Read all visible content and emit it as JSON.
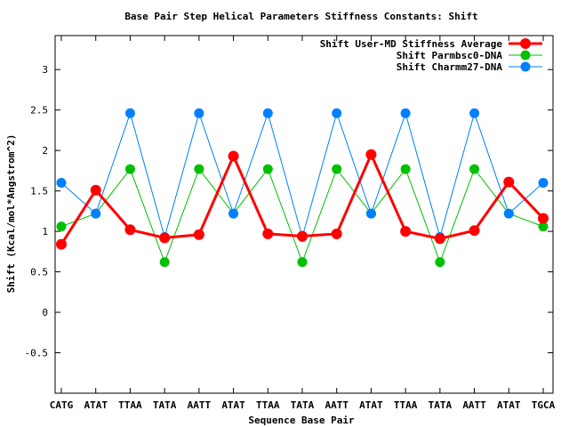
{
  "chart_data": {
    "type": "line",
    "title": "Base Pair Step Helical Parameters Stiffness Constants: Shift",
    "xlabel": "Sequence Base Pair",
    "ylabel": "Shift (Kcal/mol*Angstrom^2)",
    "categories": [
      "CATG",
      "ATAT",
      "TTAA",
      "TATA",
      "AATT",
      "ATAT",
      "TTAA",
      "TATA",
      "AATT",
      "ATAT",
      "TTAA",
      "TATA",
      "AATT",
      "ATAT",
      "TGCA"
    ],
    "ylim": [
      -1,
      3.42
    ],
    "yticks": [
      -0.5,
      0,
      0.5,
      1,
      1.5,
      2,
      2.5,
      3
    ],
    "ytick_labels": [
      "-0.5",
      "0",
      "0.5",
      "1",
      "1.5",
      "2",
      "2.5",
      "3"
    ],
    "legend_position": "top-right",
    "series": [
      {
        "name": "Shift User-MD Stiffness Average",
        "color": "#ff0000",
        "values": [
          0.84,
          1.51,
          1.02,
          0.92,
          0.96,
          1.93,
          0.97,
          0.94,
          0.97,
          1.95,
          1.0,
          0.91,
          1.01,
          1.61,
          1.16
        ]
      },
      {
        "name": "Shift Parmbsc0-DNA",
        "color": "#00c000",
        "values": [
          1.06,
          1.22,
          1.77,
          0.62,
          1.77,
          1.22,
          1.77,
          0.62,
          1.77,
          1.22,
          1.77,
          0.62,
          1.77,
          1.22,
          1.06
        ]
      },
      {
        "name": "Shift Charmm27-DNA",
        "color": "#0080ff",
        "values": [
          1.6,
          1.22,
          2.46,
          0.93,
          2.46,
          1.22,
          2.46,
          0.93,
          2.46,
          1.22,
          2.46,
          0.93,
          2.46,
          1.22,
          1.6
        ]
      }
    ]
  }
}
